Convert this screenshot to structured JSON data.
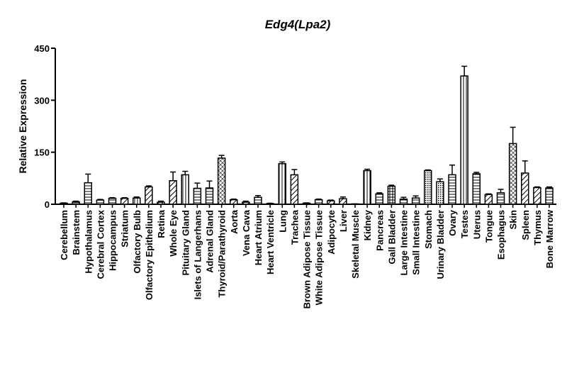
{
  "chart_data": {
    "type": "bar",
    "title": "Edg4(Lpa2)",
    "y_label": "Relative Expression",
    "categories": [
      "Cerebellum",
      "Brainstem",
      "Hypothalamus",
      "Cerebral Cortex",
      "Hippocampus",
      "Striatum",
      "Olfactory Bulb",
      "Olfactory Epithelium",
      "Retina",
      "Whole Eye",
      "Pituitary Gland",
      "Islets of Langerhans",
      "Adrenal Gland",
      "Thyroid/Parathyroid",
      "Aorta",
      "Vena Cava",
      "Heart Atrium",
      "Heart Ventricle",
      "Lung",
      "Trachea",
      "Brown Adipose Tissue",
      "White Adipose Tissue",
      "Adipocyte",
      "Liver",
      "Skeletal Muscle",
      "Kidney",
      "Pancreas",
      "Gall Bladder",
      "Large Intestine",
      "Small Intestine",
      "Stomach",
      "Urinary Bladder",
      "Ovary",
      "Testes",
      "Uterus",
      "Tongue",
      "Esophagus",
      "Skin",
      "Spleen",
      "Thymus",
      "Bone Marrow"
    ],
    "values": [
      3,
      7,
      62,
      12,
      17,
      17,
      18,
      50,
      6,
      68,
      85,
      46,
      47,
      133,
      13,
      6,
      20,
      2,
      117,
      85,
      3,
      13,
      10,
      16,
      1,
      97,
      30,
      52,
      15,
      18,
      97,
      65,
      85,
      370,
      88,
      28,
      33,
      175,
      90,
      48,
      47
    ],
    "errors": [
      1,
      2,
      25,
      2,
      2,
      2,
      3,
      3,
      3,
      25,
      10,
      15,
      20,
      8,
      2,
      3,
      5,
      1,
      5,
      15,
      1,
      2,
      2,
      5,
      0,
      4,
      3,
      3,
      5,
      6,
      2,
      8,
      28,
      28,
      4,
      2,
      10,
      47,
      35,
      2,
      3
    ],
    "patterns": [
      "white",
      "hlines",
      "hlines",
      "hlines",
      "hlines",
      "hatch",
      "vlines",
      "hatch",
      "cross",
      "hatch",
      "vlines",
      "hlines",
      "hlines",
      "cross",
      "hatch",
      "hatch",
      "hlines",
      "white",
      "vlines",
      "hatch",
      "white",
      "hlines",
      "hatch",
      "hatch",
      "white",
      "vlines",
      "hlines",
      "grid",
      "hlines",
      "hlines",
      "dots",
      "dots",
      "hlines",
      "vlines",
      "hlines",
      "hatch",
      "hlines",
      "cross",
      "hatch",
      "hatch",
      "hlines"
    ],
    "color": "#000000",
    "ylim": [
      0,
      450
    ],
    "yticks": [
      0,
      150,
      300,
      450
    ]
  }
}
